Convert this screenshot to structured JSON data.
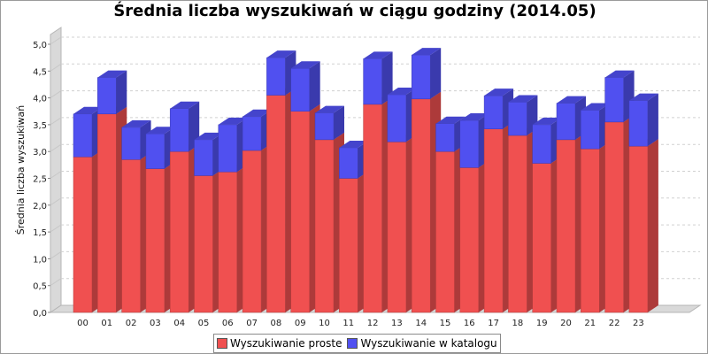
{
  "chart_data": {
    "type": "bar",
    "title": "Średnia liczba wyszukiwań w ciągu godziny (2014.05)",
    "xlabel": "",
    "ylabel": "Średnia liczba wyszukiwań",
    "ylim": [
      0,
      5
    ],
    "yticks": [
      "0,0",
      "0,5",
      "1,0",
      "1,5",
      "2,0",
      "2,5",
      "3,0",
      "3,5",
      "4,0",
      "4,5",
      "5,0"
    ],
    "grid": true,
    "stacked": true,
    "style": "3d",
    "legend_position": "bottom",
    "categories": [
      "00",
      "01",
      "02",
      "03",
      "04",
      "05",
      "06",
      "07",
      "08",
      "09",
      "10",
      "11",
      "12",
      "13",
      "14",
      "15",
      "16",
      "17",
      "18",
      "19",
      "20",
      "21",
      "22",
      "23"
    ],
    "series": [
      {
        "name": "Wyszukiwanie proste",
        "color": "#f05050",
        "values": [
          2.9,
          3.7,
          2.85,
          2.68,
          3.0,
          2.55,
          2.62,
          3.02,
          4.05,
          3.75,
          3.22,
          2.5,
          3.88,
          3.18,
          3.98,
          3.0,
          2.7,
          3.42,
          3.3,
          2.78,
          3.22,
          3.05,
          3.55,
          3.1
        ]
      },
      {
        "name": "Wyszukiwanie w katalogu",
        "color": "#5050f0",
        "values": [
          0.8,
          0.68,
          0.6,
          0.65,
          0.8,
          0.67,
          0.88,
          0.63,
          0.7,
          0.8,
          0.5,
          0.57,
          0.85,
          0.88,
          0.82,
          0.52,
          0.88,
          0.62,
          0.62,
          0.72,
          0.68,
          0.72,
          0.83,
          0.85
        ]
      }
    ]
  }
}
